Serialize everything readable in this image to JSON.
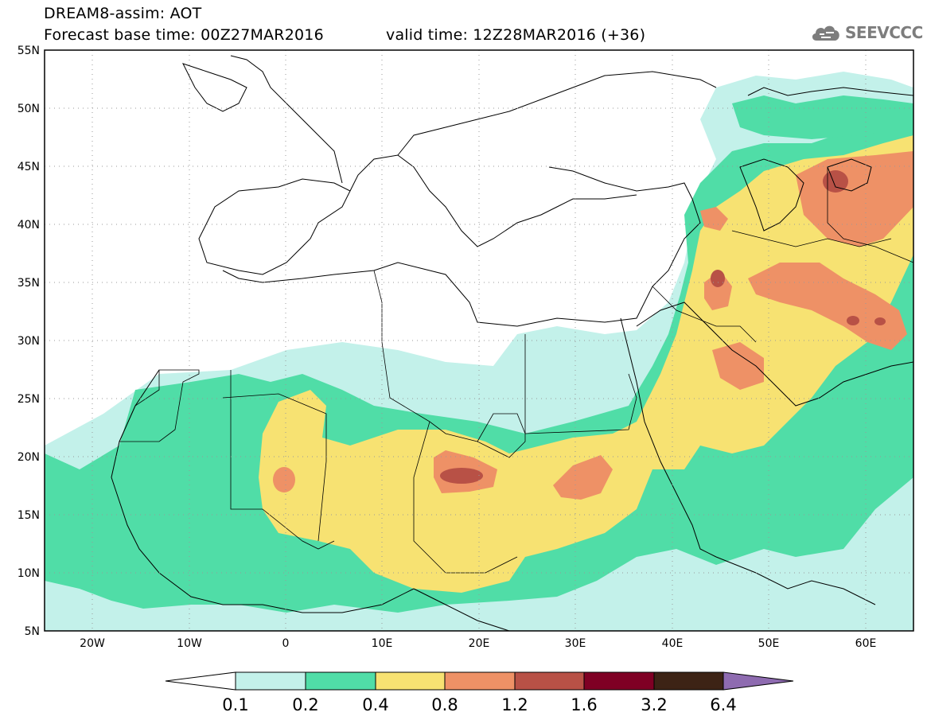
{
  "title": {
    "line1": "DREAM8-assim: AOT",
    "base_time": "Forecast base time: 00Z27MAR2016",
    "valid_time": "valid time: 12Z28MAR2016 (+36)"
  },
  "logo": {
    "text": "SEEVCCC",
    "icon": "cloud-icon",
    "color": "#7d7d7d"
  },
  "map": {
    "lon_range": [
      -25,
      65
    ],
    "lat_range": [
      5,
      55
    ],
    "lat_labels": [
      "55N",
      "50N",
      "45N",
      "40N",
      "35N",
      "30N",
      "25N",
      "20N",
      "15N",
      "10N",
      "5N"
    ],
    "lon_labels": [
      "20W",
      "10W",
      "0",
      "10E",
      "20E",
      "30E",
      "40E",
      "50E",
      "60E"
    ]
  },
  "colorbar": {
    "labels": [
      "0.1",
      "0.2",
      "0.4",
      "0.8",
      "1.2",
      "1.6",
      "3.2",
      "6.4"
    ],
    "colors": [
      "#ffffff",
      "#c3f1ea",
      "#50dda7",
      "#f7e272",
      "#ee9166",
      "#b85146",
      "#7f0024",
      "#3d2315",
      "#8e6bb0"
    ]
  }
}
